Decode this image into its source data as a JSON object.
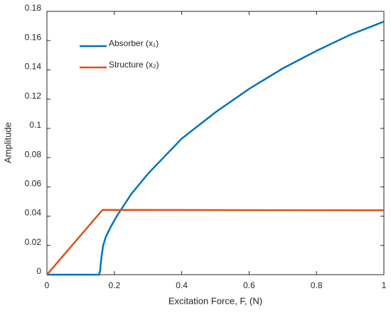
{
  "chart_data": {
    "type": "line",
    "xlabel": "Excitation Force, F, (N)",
    "ylabel": "Amplitude",
    "xlim": [
      0,
      1
    ],
    "xticks": [
      0,
      0.2,
      0.4,
      0.6,
      0.8,
      1
    ],
    "ylim": [
      0,
      0.18
    ],
    "yticks": [
      0,
      0.02,
      0.04,
      0.06,
      0.08,
      0.1,
      0.12,
      0.14,
      0.16,
      0.18
    ],
    "legend": "upper-left",
    "series": [
      {
        "name": "Absorber (x₁)",
        "color": "#0072bd",
        "x": [
          0,
          0.15,
          0.155,
          0.158,
          0.16,
          0.163,
          0.167,
          0.175,
          0.19,
          0.21,
          0.25,
          0.3,
          0.4,
          0.5,
          0.6,
          0.7,
          0.8,
          0.9,
          1
        ],
        "values": [
          0,
          0,
          0,
          0.003,
          0.008,
          0.014,
          0.02,
          0.026,
          0.033,
          0.041,
          0.055,
          0.069,
          0.093,
          0.111,
          0.127,
          0.141,
          0.153,
          0.164,
          0.173
        ]
      },
      {
        "name": "Structure (x₂)",
        "color": "#d95319",
        "x": [
          0,
          0.165,
          0.4,
          0.7,
          1
        ],
        "values": [
          0,
          0.0443,
          0.0442,
          0.0441,
          0.044
        ]
      }
    ]
  }
}
